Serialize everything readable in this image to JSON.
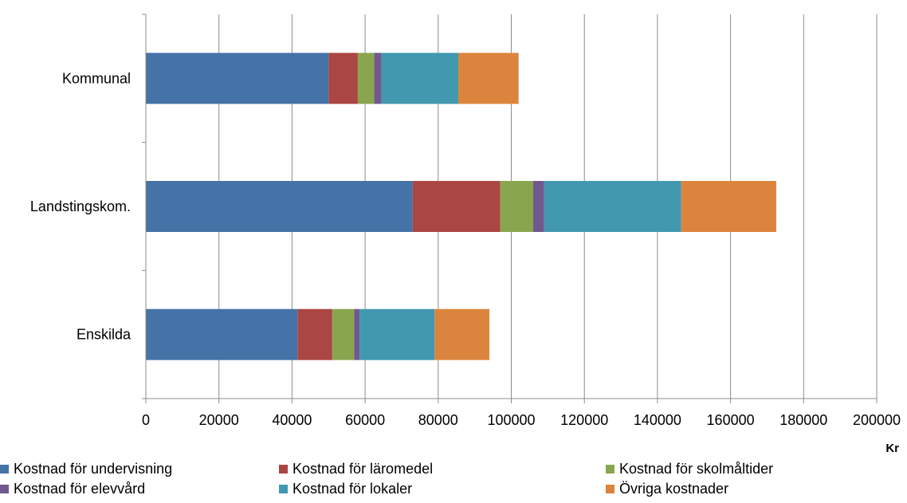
{
  "chart_data": {
    "type": "bar",
    "orientation": "horizontal",
    "stacked": true,
    "categories": [
      "Kommunal",
      "Landstingskom.",
      "Enskilda"
    ],
    "series": [
      {
        "name": "Kostnad för undervisning",
        "color": "#4572A7",
        "values": [
          50000,
          73000,
          41500
        ]
      },
      {
        "name": "Kostnad för läromedel",
        "color": "#AA4643",
        "values": [
          8000,
          24000,
          9500
        ]
      },
      {
        "name": "Kostnad för skolmåltider",
        "color": "#89A54E",
        "values": [
          4500,
          9000,
          6000
        ]
      },
      {
        "name": "Kostnad för elevvård",
        "color": "#71588F",
        "values": [
          2000,
          3000,
          1500
        ]
      },
      {
        "name": "Kostnad för lokaler",
        "color": "#4198AF",
        "values": [
          21000,
          37500,
          20500
        ]
      },
      {
        "name": "Övriga kostnader",
        "color": "#DB843D",
        "values": [
          16500,
          26000,
          15000
        ]
      }
    ],
    "xlim": [
      0,
      200000
    ],
    "xticks": [
      "0",
      "20000",
      "40000",
      "60000",
      "80000",
      "100000",
      "120000",
      "140000",
      "160000",
      "180000",
      "200000"
    ],
    "xlabel": "Kr",
    "grid": "vertical",
    "legend_position": "bottom"
  }
}
